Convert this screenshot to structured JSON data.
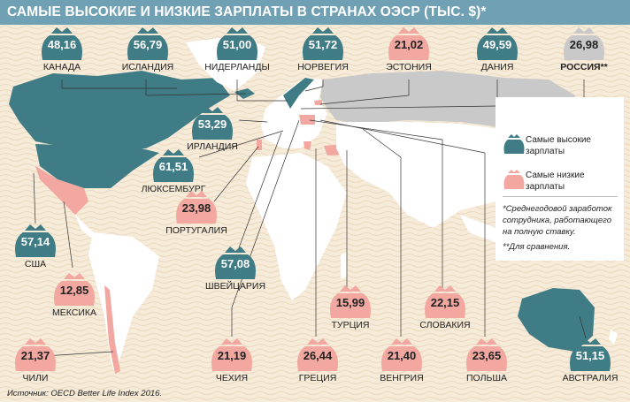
{
  "title": "САМЫЕ ВЫСОКИЕ И НИЗКИЕ ЗАРПЛАТЫ В СТРАНАХ ОЭСР (ТЫС. $)*",
  "colors": {
    "high": "#3f7c85",
    "low": "#f2a8a0",
    "neutral": "#c9c9c9",
    "land": "#ffffff",
    "bg": "#f6ead8",
    "header": "#6fa0b3"
  },
  "countries": [
    {
      "id": "canada",
      "value": "48,16",
      "label": "КАНАДА",
      "level": "high"
    },
    {
      "id": "iceland",
      "value": "56,79",
      "label": "ИСЛАНДИЯ",
      "level": "high"
    },
    {
      "id": "netherlands",
      "value": "51,00",
      "label": "НИДЕРЛАНДЫ",
      "level": "high"
    },
    {
      "id": "norway",
      "value": "51,72",
      "label": "НОРВЕГИЯ",
      "level": "high"
    },
    {
      "id": "estonia",
      "value": "21,02",
      "label": "ЭСТОНИЯ",
      "level": "low"
    },
    {
      "id": "denmark",
      "value": "49,59",
      "label": "ДАНИЯ",
      "level": "high"
    },
    {
      "id": "russia",
      "value": "26,98",
      "label": "РОССИЯ**",
      "level": "neutral"
    },
    {
      "id": "ireland",
      "value": "53,29",
      "label": "ИРЛАНДИЯ",
      "level": "high"
    },
    {
      "id": "luxembourg",
      "value": "61,51",
      "label": "ЛЮКСЕМБУРГ",
      "level": "high"
    },
    {
      "id": "portugal",
      "value": "23,98",
      "label": "ПОРТУГАЛИЯ",
      "level": "low"
    },
    {
      "id": "usa",
      "value": "57,14",
      "label": "США",
      "level": "high"
    },
    {
      "id": "switzerland",
      "value": "57,08",
      "label": "ШВЕЙЦАРИЯ",
      "level": "high"
    },
    {
      "id": "mexico",
      "value": "12,85",
      "label": "МЕКСИКА",
      "level": "low"
    },
    {
      "id": "turkey",
      "value": "15,99",
      "label": "ТУРЦИЯ",
      "level": "low"
    },
    {
      "id": "slovakia",
      "value": "22,15",
      "label": "СЛОВАКИЯ",
      "level": "low"
    },
    {
      "id": "chile",
      "value": "21,37",
      "label": "ЧИЛИ",
      "level": "low"
    },
    {
      "id": "czech",
      "value": "21,19",
      "label": "ЧЕХИЯ",
      "level": "low"
    },
    {
      "id": "greece",
      "value": "26,44",
      "label": "ГРЕЦИЯ",
      "level": "low"
    },
    {
      "id": "hungary",
      "value": "21,40",
      "label": "ВЕНГРИЯ",
      "level": "low"
    },
    {
      "id": "poland",
      "value": "23,65",
      "label": "ПОЛЬША",
      "level": "low"
    },
    {
      "id": "australia",
      "value": "51,15",
      "label": "АВСТРАЛИЯ",
      "level": "high"
    }
  ],
  "legend": {
    "high": "Самые высокие зарплаты",
    "low": "Самые низкие зарплаты",
    "note1": "*Среднегодовой заработок сотрудника, работающего на полную ставку.",
    "note2": "**Для сравнения."
  },
  "source": "Источник: OECD Better Life Index 2016."
}
